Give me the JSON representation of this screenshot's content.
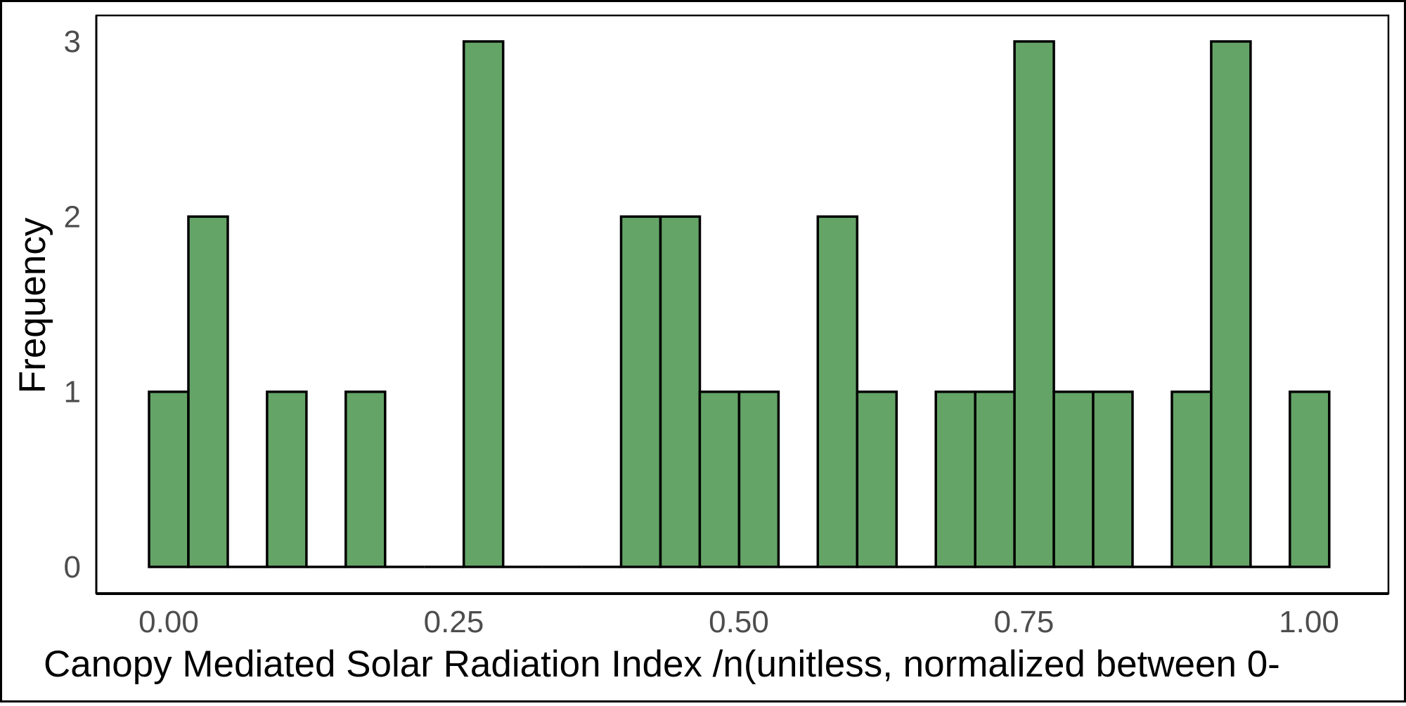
{
  "chart_data": {
    "type": "bar",
    "subtype": "histogram",
    "xlabel": "Canopy Mediated Solar Radiation Index /n(unitless, normalized between 0-",
    "ylabel": "Frequency",
    "xlim": [
      -0.05,
      1.02
    ],
    "ylim": [
      0,
      3
    ],
    "x_ticks": [
      0.0,
      0.25,
      0.5,
      0.75,
      1.0
    ],
    "x_tick_labels": [
      "0.00",
      "0.25",
      "0.50",
      "0.75",
      "1.00"
    ],
    "y_ticks": [
      0,
      1,
      2,
      3
    ],
    "y_tick_labels": [
      "0",
      "1",
      "2",
      "3"
    ],
    "bin_width": 0.0345,
    "bins": [
      {
        "x": 0.0,
        "count": 1
      },
      {
        "x": 0.0345,
        "count": 2
      },
      {
        "x": 0.069,
        "count": 0
      },
      {
        "x": 0.1035,
        "count": 1
      },
      {
        "x": 0.138,
        "count": 0
      },
      {
        "x": 0.1725,
        "count": 1
      },
      {
        "x": 0.207,
        "count": 0
      },
      {
        "x": 0.2415,
        "count": 0
      },
      {
        "x": 0.276,
        "count": 3
      },
      {
        "x": 0.3105,
        "count": 0
      },
      {
        "x": 0.345,
        "count": 0
      },
      {
        "x": 0.3795,
        "count": 0
      },
      {
        "x": 0.414,
        "count": 2
      },
      {
        "x": 0.4485,
        "count": 2
      },
      {
        "x": 0.483,
        "count": 1
      },
      {
        "x": 0.5175,
        "count": 1
      },
      {
        "x": 0.552,
        "count": 0
      },
      {
        "x": 0.5865,
        "count": 2
      },
      {
        "x": 0.621,
        "count": 1
      },
      {
        "x": 0.6555,
        "count": 0
      },
      {
        "x": 0.69,
        "count": 1
      },
      {
        "x": 0.7245,
        "count": 1
      },
      {
        "x": 0.759,
        "count": 3
      },
      {
        "x": 0.7935,
        "count": 1
      },
      {
        "x": 0.828,
        "count": 1
      },
      {
        "x": 0.8625,
        "count": 0
      },
      {
        "x": 0.897,
        "count": 1
      },
      {
        "x": 0.9315,
        "count": 3
      },
      {
        "x": 0.966,
        "count": 0
      },
      {
        "x": 1.0005,
        "count": 1
      }
    ],
    "bar_fill": "#65a467",
    "bar_stroke": "#000000",
    "grid": false,
    "legend": "none"
  }
}
